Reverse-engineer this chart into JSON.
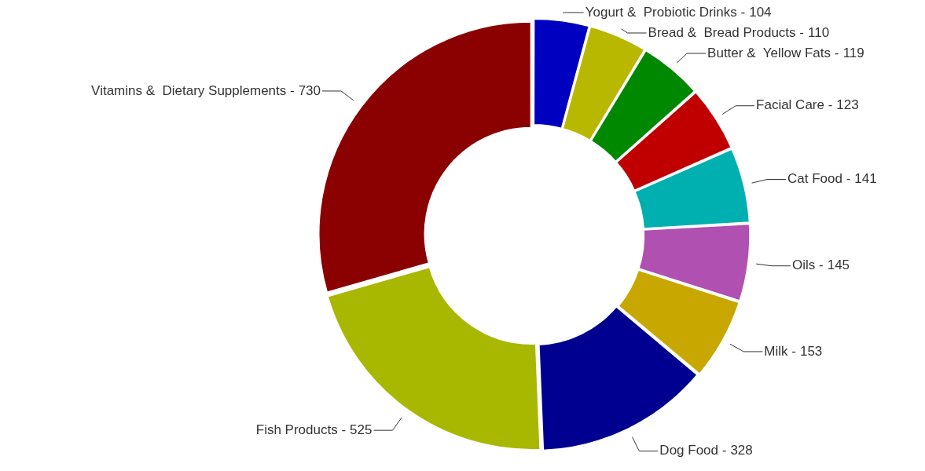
{
  "chart_data": {
    "type": "donut",
    "categories": [
      "Yogurt &  Probiotic Drinks -",
      "Bread &  Bread Products -",
      "Butter &  Yellow Fats -",
      "Facial Care -",
      "Cat Food -",
      "Oils -",
      "Milk -",
      "Dog Food -",
      "Fish Products -",
      "Vitamins &  Dietary Supplements -"
    ],
    "values": [
      104,
      110,
      119,
      123,
      141,
      145,
      153,
      328,
      525,
      730
    ],
    "colors": [
      "#0000c0",
      "#b8b800",
      "#008800",
      "#c00000",
      "#00b0b0",
      "#b050b0",
      "#c8a800",
      "#000090",
      "#a8b800",
      "#8b0000"
    ],
    "data_labels": true,
    "legend": false
  }
}
